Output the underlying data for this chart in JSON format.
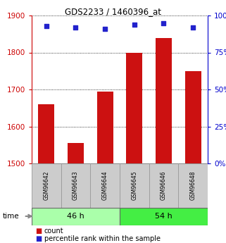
{
  "title": "GDS2233 / 1460396_at",
  "samples": [
    "GSM96642",
    "GSM96643",
    "GSM96644",
    "GSM96645",
    "GSM96646",
    "GSM96648"
  ],
  "counts": [
    1660,
    1555,
    1695,
    1800,
    1840,
    1750
  ],
  "percentiles": [
    93,
    92,
    91,
    94,
    95,
    92
  ],
  "groups": [
    {
      "label": "46 h",
      "color_light": "#bbffbb",
      "color_main": "#55ee55"
    },
    {
      "label": "54 h",
      "color_light": "#bbffbb",
      "color_main": "#44dd44"
    }
  ],
  "ylim_left": [
    1500,
    1900
  ],
  "ylim_right": [
    0,
    100
  ],
  "yticks_left": [
    1500,
    1600,
    1700,
    1800,
    1900
  ],
  "yticks_right": [
    0,
    25,
    50,
    75,
    100
  ],
  "bar_color": "#cc1111",
  "dot_color": "#2222cc",
  "title_color": "#000000",
  "left_axis_color": "#cc0000",
  "right_axis_color": "#0000cc",
  "grid_color": "#000000",
  "bg_color": "#ffffff",
  "plot_bg": "#ffffff",
  "label_bg": "#cccccc",
  "group1_color": "#aaffaa",
  "group2_color": "#44ee44"
}
